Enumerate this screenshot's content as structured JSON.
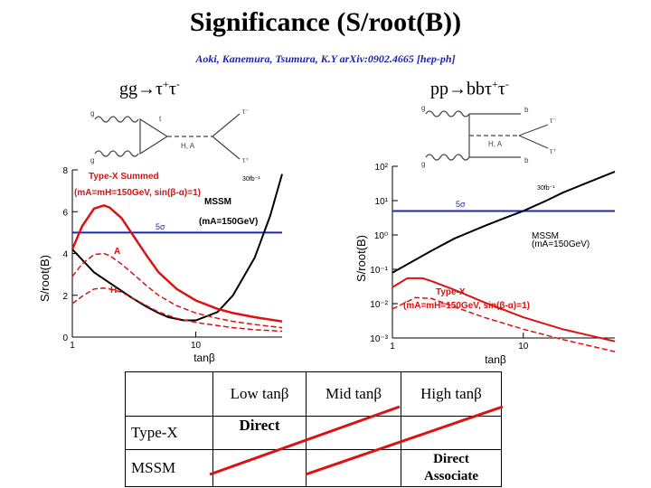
{
  "title": "Significance (S/root(B))",
  "subtitle": "Aoki, Kanemura, Tsumura, K.Y arXiv:0902.4665 [hep-ph]",
  "process_left": {
    "base": "gg→τ",
    "sup1": "+",
    "mid": "τ",
    "sup2": "-"
  },
  "process_right": {
    "base": "pp→bbτ",
    "sup1": "+",
    "mid": "τ",
    "sup2": "-"
  },
  "feynman_left": {
    "g1": "g",
    "g2": "g",
    "t": "t",
    "ha": "H, A",
    "tau1": "τ⁻",
    "tau2": "τ⁺"
  },
  "feynman_right": {
    "g1": "g",
    "g2": "g",
    "b1": "b",
    "b2": "b",
    "ha": "H, A",
    "tau1": "τ⁻",
    "tau2": "τ⁺"
  },
  "colors": {
    "mssm": "#000000",
    "typex": "#dd1111",
    "five_sigma": "#1a2aa8"
  },
  "chart_data": [
    {
      "type": "line",
      "xscale": "log",
      "xlim": [
        1,
        50
      ],
      "ylim": [
        0,
        8
      ],
      "xlabel": "tanβ",
      "ylabel": "S/root(B)",
      "xticks": [
        "1",
        "10"
      ],
      "yticks": [
        "0",
        "2",
        "4",
        "6",
        "8"
      ],
      "five_sigma": 5,
      "annotations": {
        "typex_title": "Type-X Summed",
        "typex_params": "(mA=mH=150GeV, sin(β-α)=1)",
        "lumi": "30fb⁻¹",
        "mssm_title": "MSSM",
        "mssm_params": "(mA=150GeV)",
        "five_sigma_label": "5σ",
        "a_label": "A",
        "h_label": "H"
      },
      "series": [
        {
          "key": "mssm",
          "x": [
            1,
            1.5,
            2,
            3,
            4,
            5,
            6,
            8,
            10,
            15,
            20,
            30,
            40,
            50
          ],
          "y": [
            4.2,
            3.1,
            2.6,
            1.9,
            1.45,
            1.15,
            0.95,
            0.8,
            0.8,
            1.2,
            2.0,
            3.8,
            5.8,
            7.8
          ]
        },
        {
          "key": "typex_summed",
          "x": [
            1,
            1.2,
            1.5,
            1.8,
            2,
            2.5,
            3,
            4,
            5,
            7,
            10,
            15,
            20,
            30,
            50
          ],
          "y": [
            4.2,
            5.3,
            6.15,
            6.3,
            6.2,
            5.7,
            5.0,
            3.9,
            3.1,
            2.3,
            1.75,
            1.35,
            1.15,
            0.95,
            0.75
          ]
        },
        {
          "key": "typex_a",
          "x": [
            1,
            1.2,
            1.5,
            1.8,
            2,
            2.5,
            3,
            4,
            5,
            7,
            10,
            15,
            20,
            30,
            50
          ],
          "y": [
            2.9,
            3.5,
            3.95,
            4.0,
            3.9,
            3.5,
            3.1,
            2.45,
            2.0,
            1.5,
            1.15,
            0.9,
            0.75,
            0.6,
            0.45
          ]
        },
        {
          "key": "typex_h",
          "x": [
            1,
            1.2,
            1.5,
            1.8,
            2,
            2.5,
            3,
            4,
            5,
            7,
            10,
            15,
            20,
            30,
            50
          ],
          "y": [
            1.6,
            1.95,
            2.3,
            2.35,
            2.3,
            2.15,
            1.9,
            1.5,
            1.2,
            0.9,
            0.7,
            0.55,
            0.45,
            0.35,
            0.28
          ]
        }
      ]
    },
    {
      "type": "line",
      "xscale": "log",
      "yscale": "log",
      "xlim": [
        1,
        50
      ],
      "ylim": [
        0.001,
        100
      ],
      "xlabel": "tanβ",
      "ylabel": "S/root(B)",
      "xticks": [
        "1",
        "10"
      ],
      "yticks": [
        "10⁻³",
        "10⁻²",
        "10⁻¹",
        "10⁰",
        "10¹",
        "10²"
      ],
      "five_sigma": 5,
      "annotations": {
        "typex_title": "Type-X",
        "typex_params": "(mA=mH=150GeV, sin(β-α)=1)",
        "lumi": "30fb⁻¹",
        "mssm_title": "MSSM",
        "mssm_params": "(mA=150GeV)",
        "five_sigma_label": "5σ"
      },
      "series": [
        {
          "key": "mssm",
          "x": [
            1,
            2,
            3,
            5,
            7,
            10,
            15,
            20,
            30,
            50
          ],
          "y": [
            0.08,
            0.35,
            0.8,
            1.8,
            3.0,
            5.0,
            10,
            17,
            32,
            70
          ]
        },
        {
          "key": "typex",
          "x": [
            1,
            1.3,
            1.7,
            2,
            3,
            5,
            10,
            20,
            50
          ],
          "y": [
            0.03,
            0.055,
            0.055,
            0.045,
            0.025,
            0.011,
            0.004,
            0.0018,
            0.0008
          ]
        },
        {
          "key": "typex_2",
          "x": [
            1,
            1.5,
            2,
            3,
            5,
            10,
            20,
            50
          ],
          "y": [
            0.007,
            0.015,
            0.014,
            0.008,
            0.004,
            0.0018,
            0.0009,
            0.0004
          ]
        }
      ]
    }
  ],
  "table": {
    "col_headers": [
      "Low tanβ",
      "Mid tanβ",
      "High tanβ"
    ],
    "rows": [
      {
        "label": "Type-X",
        "low": "Direct",
        "mid": "",
        "high": ""
      },
      {
        "label": "MSSM",
        "low": "",
        "mid": "",
        "high_line1": "Direct",
        "high_line2": "Associate"
      }
    ]
  }
}
